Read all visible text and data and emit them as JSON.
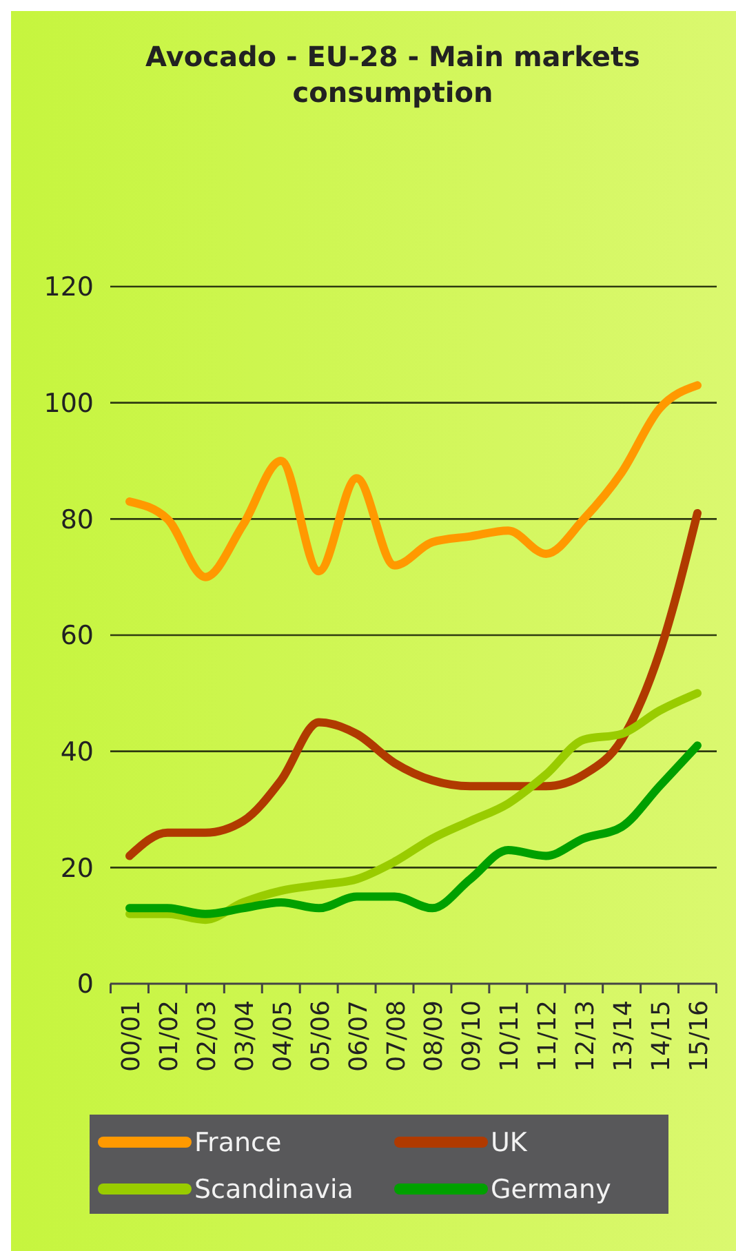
{
  "chart_data": {
    "type": "line",
    "title": "Avocado - EU-28 - Main markets consumption",
    "categories": [
      "00/01",
      "01/02",
      "02/03",
      "03/04",
      "04/05",
      "05/06",
      "06/07",
      "07/08",
      "08/09",
      "09/10",
      "10/11",
      "11/12",
      "12/13",
      "13/14",
      "14/15",
      "15/16"
    ],
    "series": [
      {
        "name": "France",
        "color": "#ff9900",
        "values": [
          83,
          80,
          70,
          79,
          90,
          71,
          87,
          72,
          76,
          77,
          78,
          74,
          80,
          88,
          99,
          103
        ]
      },
      {
        "name": "UK",
        "color": "#b03a00",
        "values": [
          22,
          26,
          26,
          28,
          35,
          45,
          43,
          38,
          35,
          34,
          34,
          34,
          36,
          42,
          57,
          81
        ]
      },
      {
        "name": "Scandinavia",
        "color": "#99cc00",
        "values": [
          12,
          12,
          11,
          14,
          16,
          17,
          18,
          21,
          25,
          28,
          31,
          36,
          42,
          43,
          47,
          50
        ]
      },
      {
        "name": "Germany",
        "color": "#00a000",
        "values": [
          13,
          13,
          12,
          13,
          14,
          13,
          15,
          15,
          13,
          18,
          23,
          22,
          25,
          27,
          34,
          41
        ]
      }
    ],
    "ylim": [
      0,
      120
    ],
    "yticks": [
      0,
      20,
      40,
      60,
      80,
      100,
      120
    ],
    "grid": "y",
    "legend": "bottom",
    "line_style": "solid",
    "marker": "none"
  }
}
